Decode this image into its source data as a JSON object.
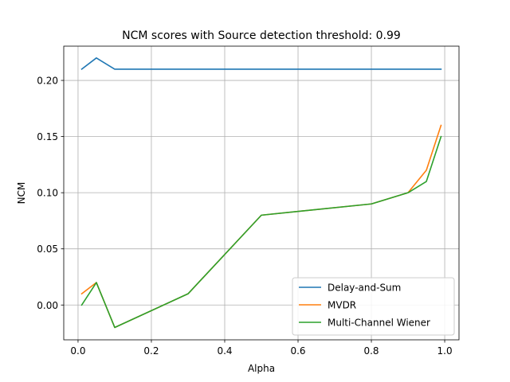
{
  "chart_data": {
    "type": "line",
    "title": "NCM scores with Source detection threshold: 0.99",
    "xlabel": "Alpha",
    "ylabel": "NCM",
    "xlim": [
      -0.039,
      1.039
    ],
    "ylim": [
      -0.031,
      0.2305
    ],
    "xticks": [
      0.0,
      0.2,
      0.4,
      0.6,
      0.8,
      1.0
    ],
    "xtick_labels": [
      "0.0",
      "0.2",
      "0.4",
      "0.6",
      "0.8",
      "1.0"
    ],
    "yticks": [
      0.0,
      0.05,
      0.1,
      0.15,
      0.2
    ],
    "ytick_labels": [
      "0.00",
      "0.05",
      "0.10",
      "0.15",
      "0.20"
    ],
    "grid": true,
    "legend_position": "lower-right",
    "x": [
      0.01,
      0.05,
      0.1,
      0.3,
      0.5,
      0.8,
      0.9,
      0.95,
      0.99
    ],
    "series": [
      {
        "name": "Delay-and-Sum",
        "color": "#1f77b4",
        "values": [
          0.21,
          0.22,
          0.21,
          0.21,
          0.21,
          0.21,
          0.21,
          0.21,
          0.21
        ]
      },
      {
        "name": "MVDR",
        "color": "#ff7f0e",
        "values": [
          0.01,
          0.02,
          -0.02,
          0.01,
          0.08,
          0.09,
          0.1,
          0.12,
          0.16
        ]
      },
      {
        "name": "Multi-Channel Wiener",
        "color": "#2ca02c",
        "values": [
          0.0,
          0.02,
          -0.02,
          0.01,
          0.08,
          0.09,
          0.1,
          0.11,
          0.15
        ]
      }
    ]
  }
}
